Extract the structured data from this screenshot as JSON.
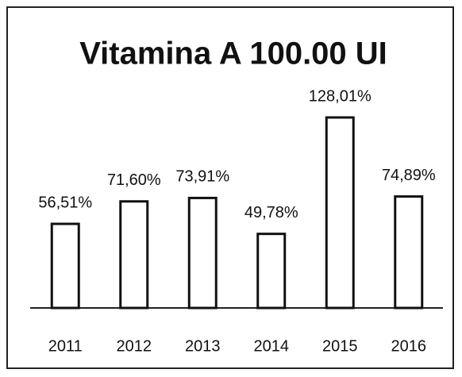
{
  "chart_data": {
    "type": "bar",
    "title": "Vitamina A 100.00 UI",
    "categories": [
      "2011",
      "2012",
      "2013",
      "2014",
      "2015",
      "2016"
    ],
    "values": [
      56.51,
      71.6,
      73.91,
      49.78,
      128.01,
      74.89
    ],
    "value_labels": [
      "56,51%",
      "71,60%",
      "73,91%",
      "49,78%",
      "128,01%",
      "74,89%"
    ],
    "color": "#ffffff"
  }
}
